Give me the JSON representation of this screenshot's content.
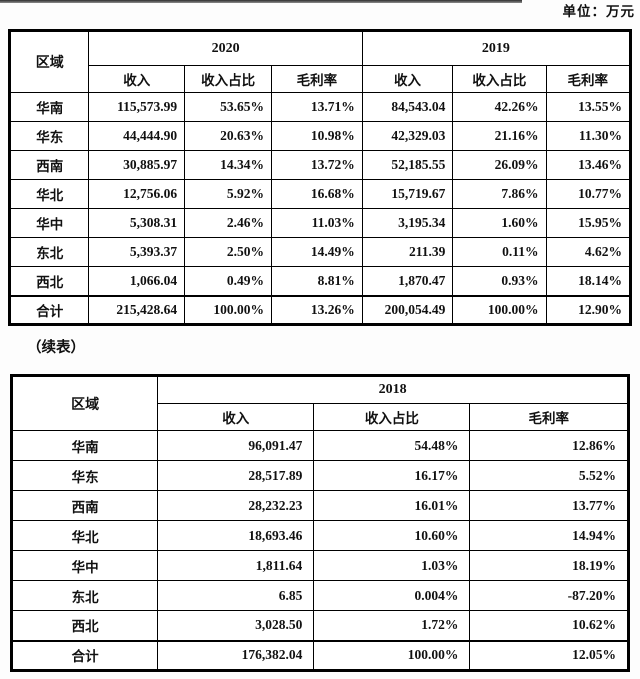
{
  "page": {
    "unit_label": "单位：万元",
    "continued_label": "（续表）"
  },
  "table1": {
    "region_header": "区域",
    "year_groups": [
      {
        "year": "2020",
        "columns": [
          "收入",
          "收入占比",
          "毛利率"
        ]
      },
      {
        "year": "2019",
        "columns": [
          "收入",
          "收入占比",
          "毛利率"
        ]
      }
    ],
    "rows": [
      {
        "region": "华南",
        "cells": [
          "115,573.99",
          "53.65%",
          "13.71%",
          "84,543.04",
          "42.26%",
          "13.55%"
        ]
      },
      {
        "region": "华东",
        "cells": [
          "44,444.90",
          "20.63%",
          "10.98%",
          "42,329.03",
          "21.16%",
          "11.30%"
        ]
      },
      {
        "region": "西南",
        "cells": [
          "30,885.97",
          "14.34%",
          "13.72%",
          "52,185.55",
          "26.09%",
          "13.46%"
        ]
      },
      {
        "region": "华北",
        "cells": [
          "12,756.06",
          "5.92%",
          "16.68%",
          "15,719.67",
          "7.86%",
          "10.77%"
        ]
      },
      {
        "region": "华中",
        "cells": [
          "5,308.31",
          "2.46%",
          "11.03%",
          "3,195.34",
          "1.60%",
          "15.95%"
        ]
      },
      {
        "region": "东北",
        "cells": [
          "5,393.37",
          "2.50%",
          "14.49%",
          "211.39",
          "0.11%",
          "4.62%"
        ]
      },
      {
        "region": "西北",
        "cells": [
          "1,066.04",
          "0.49%",
          "8.81%",
          "1,870.47",
          "0.93%",
          "18.14%"
        ]
      }
    ],
    "total": {
      "region": "合计",
      "cells": [
        "215,428.64",
        "100.00%",
        "13.26%",
        "200,054.49",
        "100.00%",
        "12.90%"
      ]
    }
  },
  "table2": {
    "region_header": "区域",
    "year_groups": [
      {
        "year": "2018",
        "columns": [
          "收入",
          "收入占比",
          "毛利率"
        ]
      }
    ],
    "rows": [
      {
        "region": "华南",
        "cells": [
          "96,091.47",
          "54.48%",
          "12.86%"
        ]
      },
      {
        "region": "华东",
        "cells": [
          "28,517.89",
          "16.17%",
          "5.52%"
        ]
      },
      {
        "region": "西南",
        "cells": [
          "28,232.23",
          "16.01%",
          "13.77%"
        ]
      },
      {
        "region": "华北",
        "cells": [
          "18,693.46",
          "10.60%",
          "14.94%"
        ]
      },
      {
        "region": "华中",
        "cells": [
          "1,811.64",
          "1.03%",
          "18.19%"
        ]
      },
      {
        "region": "东北",
        "cells": [
          "6.85",
          "0.004%",
          "-87.20%"
        ]
      },
      {
        "region": "西北",
        "cells": [
          "3,028.50",
          "1.72%",
          "10.62%"
        ]
      }
    ],
    "total": {
      "region": "合计",
      "cells": [
        "176,382.04",
        "100.00%",
        "12.05%"
      ]
    }
  }
}
